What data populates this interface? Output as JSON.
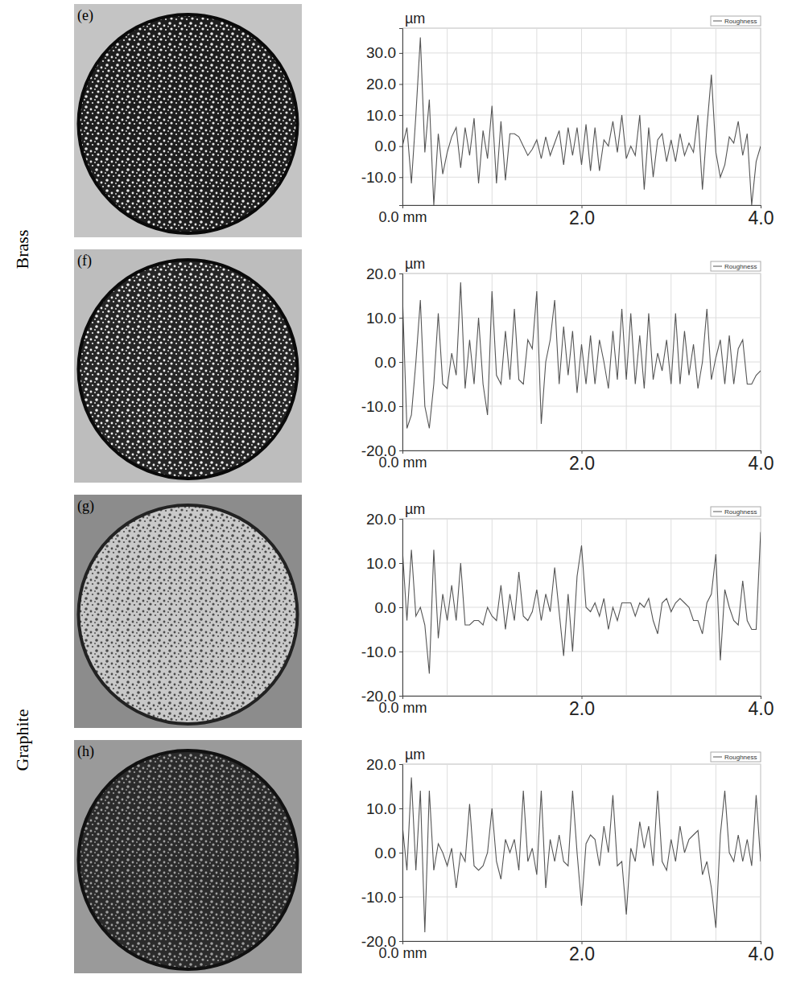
{
  "row_labels": [
    "Brass",
    "Graphite"
  ],
  "chart_data": [
    {
      "type": "line",
      "annotations": [
        "(e)"
      ],
      "y_label": "µm",
      "grid": true,
      "legend": "upper right",
      "x": [
        0,
        0.05,
        0.1,
        0.15,
        0.2,
        0.25,
        0.3,
        0.35,
        0.4,
        0.45,
        0.5,
        0.55,
        0.6,
        0.65,
        0.7,
        0.75,
        0.8,
        0.85,
        0.9,
        0.95,
        1.0,
        1.05,
        1.1,
        1.15,
        1.2,
        1.25,
        1.3,
        1.35,
        1.4,
        1.45,
        1.5,
        1.55,
        1.6,
        1.65,
        1.7,
        1.75,
        1.8,
        1.85,
        1.9,
        1.95,
        2.0,
        2.05,
        2.1,
        2.15,
        2.2,
        2.25,
        2.3,
        2.35,
        2.4,
        2.45,
        2.5,
        2.55,
        2.6,
        2.65,
        2.7,
        2.75,
        2.8,
        2.85,
        2.9,
        2.95,
        3.0,
        3.05,
        3.1,
        3.15,
        3.2,
        3.25,
        3.3,
        3.35,
        3.4,
        3.45,
        3.5,
        3.55,
        3.6,
        3.65,
        3.7,
        3.75,
        3.8,
        3.85,
        3.9,
        3.95,
        4.0
      ],
      "series": [
        {
          "name": "Roughness",
          "color": "#555555",
          "values": [
            0,
            6,
            -12,
            10,
            35,
            -2,
            15,
            -19,
            4,
            -9,
            -2,
            3,
            6,
            -7,
            6,
            -3,
            9,
            -12,
            5,
            -4,
            13,
            -12,
            8,
            -11,
            4,
            4,
            3,
            0,
            -3,
            -1,
            2,
            -4,
            3,
            -3,
            1,
            5,
            -6,
            6,
            -3,
            6,
            -6,
            7,
            -8,
            6,
            -8,
            2,
            0,
            8,
            -2,
            10,
            -4,
            0,
            -3,
            10,
            -14,
            6,
            -10,
            2,
            4,
            -5,
            2,
            -5,
            4,
            -3,
            1,
            -2,
            10,
            -14,
            6,
            23,
            -2,
            -10,
            -6,
            3,
            1,
            8,
            -3,
            4,
            -19,
            -5,
            0
          ]
        }
      ],
      "xlim": [
        0,
        4
      ],
      "xticks": [
        {
          "value": 0,
          "label": "0.0 mm"
        },
        {
          "value": 2,
          "label": "2.0"
        },
        {
          "value": 4,
          "label": "4.0"
        }
      ],
      "ylim": [
        -19,
        38
      ],
      "yticks": [
        {
          "value": -10,
          "label": "-10.0"
        },
        {
          "value": 0,
          "label": "0.0"
        },
        {
          "value": 10,
          "label": "10.0"
        },
        {
          "value": 20,
          "label": "20.0"
        },
        {
          "value": 30,
          "label": "30.0"
        }
      ]
    },
    {
      "type": "line",
      "annotations": [
        "(f)"
      ],
      "y_label": "µm",
      "grid": true,
      "legend": "upper right",
      "x": [
        0,
        0.05,
        0.1,
        0.15,
        0.2,
        0.25,
        0.3,
        0.35,
        0.4,
        0.45,
        0.5,
        0.55,
        0.6,
        0.65,
        0.7,
        0.75,
        0.8,
        0.85,
        0.9,
        0.95,
        1.0,
        1.05,
        1.1,
        1.15,
        1.2,
        1.25,
        1.3,
        1.35,
        1.4,
        1.45,
        1.5,
        1.55,
        1.6,
        1.65,
        1.7,
        1.75,
        1.8,
        1.85,
        1.9,
        1.95,
        2.0,
        2.05,
        2.1,
        2.15,
        2.2,
        2.25,
        2.3,
        2.35,
        2.4,
        2.45,
        2.5,
        2.55,
        2.6,
        2.65,
        2.7,
        2.75,
        2.8,
        2.85,
        2.9,
        2.95,
        3.0,
        3.05,
        3.1,
        3.15,
        3.2,
        3.25,
        3.3,
        3.35,
        3.4,
        3.45,
        3.5,
        3.55,
        3.6,
        3.65,
        3.7,
        3.75,
        3.8,
        3.85,
        3.9,
        3.95,
        4.0
      ],
      "series": [
        {
          "name": "Roughness",
          "color": "#555555",
          "values": [
            15,
            -15,
            -12,
            0,
            14,
            -10,
            -15,
            -5,
            11,
            -5,
            -6,
            2,
            -3,
            18,
            -6,
            5,
            -5,
            10,
            -5,
            -12,
            16,
            -3,
            -5,
            7,
            -4,
            12,
            -4,
            -5,
            5,
            3,
            16,
            -14,
            0,
            5,
            14,
            -5,
            8,
            -3,
            7,
            -7,
            4,
            -5,
            6,
            -5,
            5,
            0,
            -6,
            7,
            -4,
            12,
            -4,
            11,
            -5,
            6,
            -6,
            11,
            -4,
            2,
            -2,
            5,
            -5,
            11,
            -5,
            7,
            -3,
            4,
            -6,
            0,
            12,
            -4,
            1,
            5,
            -5,
            6,
            -5,
            3,
            5,
            -5,
            -5,
            -3,
            -2
          ]
        }
      ],
      "xlim": [
        0,
        4
      ],
      "xticks": [
        {
          "value": 0,
          "label": "0.0 mm"
        },
        {
          "value": 2,
          "label": "2.0"
        },
        {
          "value": 4,
          "label": "4.0"
        }
      ],
      "ylim": [
        -20,
        20
      ],
      "yticks": [
        {
          "value": -20,
          "label": "-20.0"
        },
        {
          "value": -10,
          "label": "-10.0"
        },
        {
          "value": 0,
          "label": "0.0"
        },
        {
          "value": 10,
          "label": "10.0"
        },
        {
          "value": 20,
          "label": "20.0"
        }
      ]
    },
    {
      "type": "line",
      "annotations": [
        "(g)"
      ],
      "y_label": "µm",
      "grid": true,
      "legend": "upper right",
      "x": [
        0,
        0.05,
        0.1,
        0.15,
        0.2,
        0.25,
        0.3,
        0.35,
        0.4,
        0.45,
        0.5,
        0.55,
        0.6,
        0.65,
        0.7,
        0.75,
        0.8,
        0.85,
        0.9,
        0.95,
        1.0,
        1.05,
        1.1,
        1.15,
        1.2,
        1.25,
        1.3,
        1.35,
        1.4,
        1.45,
        1.5,
        1.55,
        1.6,
        1.65,
        1.7,
        1.75,
        1.8,
        1.85,
        1.9,
        1.95,
        2.0,
        2.05,
        2.1,
        2.15,
        2.2,
        2.25,
        2.3,
        2.35,
        2.4,
        2.45,
        2.5,
        2.55,
        2.6,
        2.65,
        2.7,
        2.75,
        2.8,
        2.85,
        2.9,
        2.95,
        3.0,
        3.05,
        3.1,
        3.15,
        3.2,
        3.25,
        3.3,
        3.35,
        3.4,
        3.45,
        3.5,
        3.55,
        3.6,
        3.65,
        3.7,
        3.75,
        3.8,
        3.85,
        3.9,
        3.95,
        4.0
      ],
      "series": [
        {
          "name": "Roughness",
          "color": "#555555",
          "values": [
            13,
            -3,
            13,
            -2,
            0,
            -4,
            -15,
            13,
            -7,
            3,
            -3,
            5,
            -3,
            10,
            -4,
            -4,
            -3,
            -3,
            -4,
            0,
            -2,
            -3,
            5,
            -5,
            3,
            -3,
            8,
            -2,
            -3,
            -1,
            4,
            -3,
            3,
            -1,
            9,
            -1,
            -11,
            3,
            -10,
            7,
            14,
            0,
            -1,
            1,
            -2,
            2,
            -5,
            0,
            -3,
            1,
            1,
            1,
            -2,
            1,
            0,
            2,
            -3,
            -6,
            1,
            2,
            -1,
            1,
            2,
            1,
            0,
            -3,
            -3,
            -6,
            1,
            3,
            12,
            -12,
            4,
            0,
            -3,
            -4,
            6,
            -3,
            -5,
            -5,
            17
          ]
        }
      ],
      "xlim": [
        0,
        4
      ],
      "xticks": [
        {
          "value": 0,
          "label": "0.0 mm"
        },
        {
          "value": 2,
          "label": "2.0"
        },
        {
          "value": 4,
          "label": "4.0"
        }
      ],
      "ylim": [
        -20,
        20
      ],
      "yticks": [
        {
          "value": -20,
          "label": "-20.0"
        },
        {
          "value": -10,
          "label": "-10.0"
        },
        {
          "value": 0,
          "label": "0.0"
        },
        {
          "value": 10,
          "label": "10.0"
        },
        {
          "value": 20,
          "label": "20.0"
        }
      ]
    },
    {
      "type": "line",
      "annotations": [
        "(h)"
      ],
      "y_label": "µm",
      "grid": true,
      "legend": "upper right",
      "x": [
        0,
        0.05,
        0.1,
        0.15,
        0.2,
        0.25,
        0.3,
        0.35,
        0.4,
        0.45,
        0.5,
        0.55,
        0.6,
        0.65,
        0.7,
        0.75,
        0.8,
        0.85,
        0.9,
        0.95,
        1.0,
        1.05,
        1.1,
        1.15,
        1.2,
        1.25,
        1.3,
        1.35,
        1.4,
        1.45,
        1.5,
        1.55,
        1.6,
        1.65,
        1.7,
        1.75,
        1.8,
        1.85,
        1.9,
        1.95,
        2.0,
        2.05,
        2.1,
        2.15,
        2.2,
        2.25,
        2.3,
        2.35,
        2.4,
        2.45,
        2.5,
        2.55,
        2.6,
        2.65,
        2.7,
        2.75,
        2.8,
        2.85,
        2.9,
        2.95,
        3.0,
        3.05,
        3.1,
        3.15,
        3.2,
        3.25,
        3.3,
        3.35,
        3.4,
        3.45,
        3.5,
        3.55,
        3.6,
        3.65,
        3.7,
        3.75,
        3.8,
        3.85,
        3.9,
        3.95,
        4.0
      ],
      "series": [
        {
          "name": "Roughness",
          "color": "#555555",
          "values": [
            6,
            -4,
            17,
            -4,
            14,
            -18,
            14,
            -4,
            2,
            0,
            -3,
            1,
            -8,
            0,
            -2,
            11,
            -3,
            -4,
            -3,
            0,
            10,
            -2,
            -6,
            3,
            0,
            3,
            -4,
            14,
            -2,
            1,
            -5,
            14,
            -8,
            3,
            -2,
            4,
            -2,
            -3,
            14,
            0,
            -12,
            2,
            4,
            3,
            -3,
            6,
            0,
            13,
            -3,
            -2,
            -14,
            1,
            -2,
            7,
            1,
            6,
            -3,
            14,
            -2,
            -4,
            3,
            -2,
            6,
            0,
            3,
            4,
            5,
            -5,
            -2,
            -8,
            -17,
            4,
            14,
            0,
            -2,
            4,
            -2,
            3,
            -3,
            13,
            -2
          ]
        }
      ],
      "xlim": [
        0,
        4
      ],
      "xticks": [
        {
          "value": 0,
          "label": "0.0 mm"
        },
        {
          "value": 2,
          "label": "2.0"
        },
        {
          "value": 4,
          "label": "4.0"
        }
      ],
      "ylim": [
        -20,
        20
      ],
      "yticks": [
        {
          "value": -20,
          "label": "-20.0"
        },
        {
          "value": -10,
          "label": "-10.0"
        },
        {
          "value": 0,
          "label": "0.0"
        },
        {
          "value": 10,
          "label": "10.0"
        },
        {
          "value": 20,
          "label": "20.0"
        }
      ]
    }
  ]
}
